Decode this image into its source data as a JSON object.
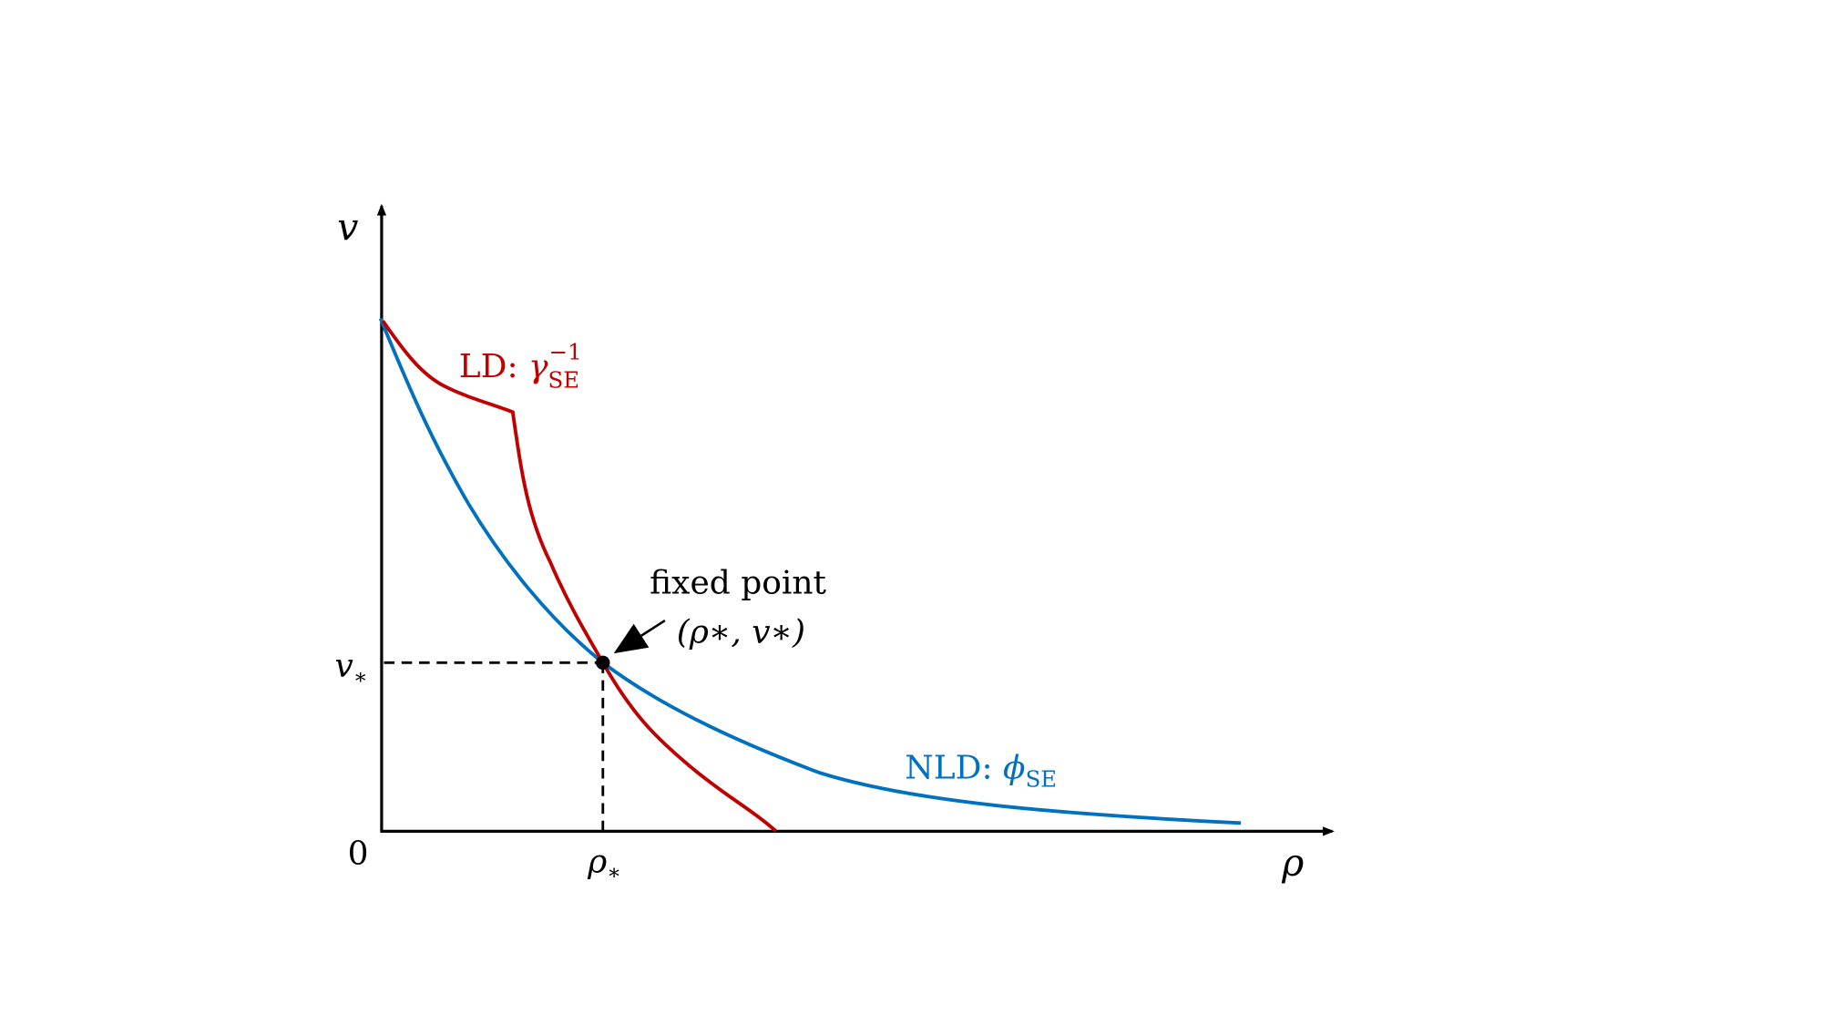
{
  "axes": {
    "y_label": "v",
    "x_label": "ρ",
    "origin_label": "0",
    "y_star_label": "v",
    "x_star_label": "ρ",
    "star": "∗"
  },
  "curves": {
    "ld": {
      "label_prefix": "LD: ",
      "symbol": "γ",
      "subscript": "SE",
      "superscript": "−1",
      "color": "#c00000"
    },
    "nld": {
      "label_prefix": "NLD: ",
      "symbol": "ϕ",
      "subscript": "SE",
      "color": "#0070c0"
    }
  },
  "annotation": {
    "title": "fixed point",
    "coords": "(ρ∗, v∗)"
  }
}
